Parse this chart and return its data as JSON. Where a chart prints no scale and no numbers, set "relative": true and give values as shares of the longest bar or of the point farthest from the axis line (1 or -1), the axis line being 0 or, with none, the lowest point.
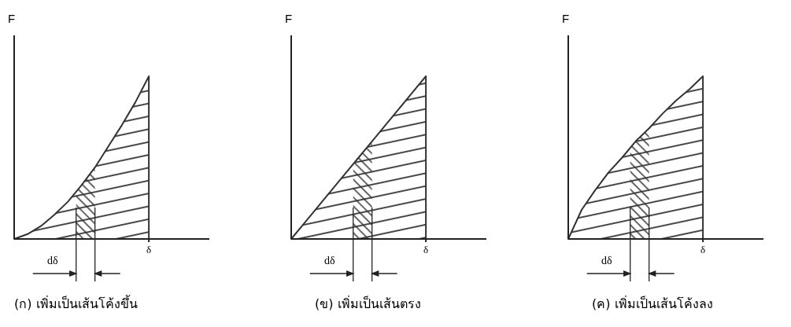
{
  "chart_data": [
    {
      "type": "area",
      "relative": true,
      "title": "(ก) เพิ่มเป็นเส้นโค้งขึ้น",
      "ylabel": "F",
      "categories": [
        null,
        null,
        null,
        null,
        null,
        null,
        null,
        null,
        null,
        null,
        null
      ],
      "series": [
        {
          "color": "#333333",
          "values": [
            0,
            0.03,
            0.08,
            0.15,
            0.23,
            0.33,
            0.44,
            0.57,
            0.7,
            0.84,
            1
          ]
        }
      ],
      "annotations": [
        "δ",
        "dδ"
      ]
    },
    {
      "type": "area",
      "relative": true,
      "title": "(ข) เพิ่มเป็นเส้นตรง",
      "ylabel": "F",
      "categories": [
        null,
        null,
        null,
        null,
        null,
        null,
        null,
        null,
        null,
        null,
        null
      ],
      "series": [
        {
          "color": "#333333",
          "values": [
            0,
            0.1,
            0.2,
            0.3,
            0.4,
            0.5,
            0.6,
            0.7,
            0.8,
            0.9,
            1
          ]
        }
      ],
      "annotations": [
        "δ",
        "dδ"
      ]
    },
    {
      "type": "area",
      "relative": true,
      "title": "(ค) เพิ่มเป็นเส้นโค้งลง",
      "ylabel": "F",
      "categories": [
        null,
        null,
        null,
        null,
        null,
        null,
        null,
        null,
        null,
        null,
        null
      ],
      "series": [
        {
          "color": "#333333",
          "values": [
            0,
            0.18,
            0.3,
            0.41,
            0.5,
            0.6,
            0.68,
            0.77,
            0.85,
            0.92,
            1
          ]
        }
      ],
      "annotations": [
        "δ",
        "dδ"
      ]
    }
  ]
}
